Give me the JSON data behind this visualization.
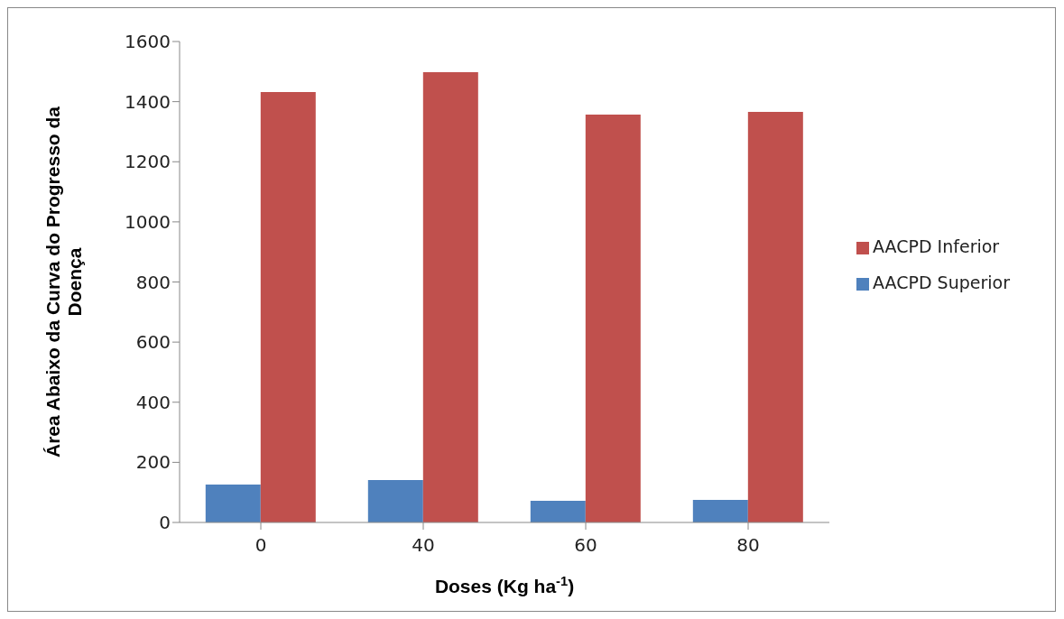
{
  "chart_data": {
    "type": "bar",
    "xlabel": "Doses (Kg ha$^{-1}$)",
    "ylabel": "Área Abaixo da Curva do Progresso da Doença",
    "categories": [
      "0",
      "40",
      "60",
      "80"
    ],
    "series": [
      {
        "name": "AACPD Superior",
        "color": "#4f81bd",
        "values": [
          126,
          141,
          72,
          75
        ]
      },
      {
        "name": "AACPD Inferior",
        "color": "#c0504d",
        "values": [
          1432,
          1498,
          1357,
          1366
        ]
      }
    ],
    "ylim": [
      0,
      1600
    ],
    "yticks": [
      0,
      200,
      400,
      600,
      800,
      1000,
      1200,
      1400,
      1600
    ],
    "grid": false,
    "legend": "right"
  }
}
